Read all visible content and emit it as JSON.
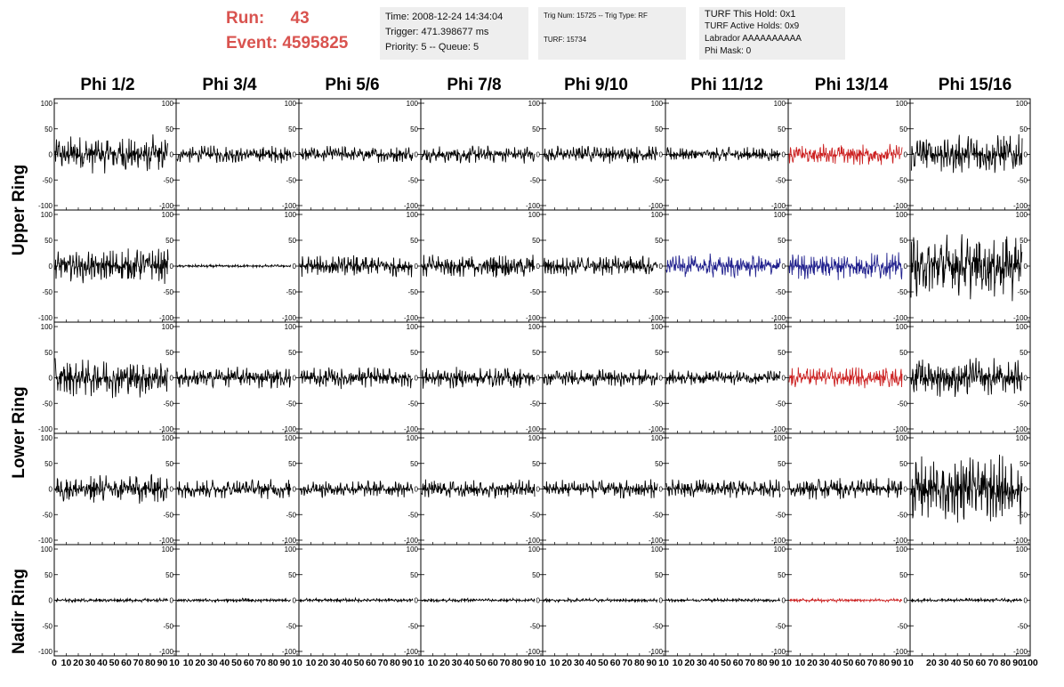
{
  "header": {
    "run_label": "Run:",
    "run_value": "43",
    "event_label": "Event:",
    "event_value": "4595825",
    "box1": [
      "Time: 2008-12-24 14:34:04",
      "Trigger: 471.398677 ms",
      "Priority: 5 -- Queue: 5"
    ],
    "box2": [
      "Trig Num: 15725 -- Trig Type: RF",
      "TURF: 15734"
    ],
    "box3": [
      "TURF This Hold: 0x1",
      "TURF Active Holds: 0x9",
      "Labrador AAAAAAAAAA",
      "Phi Mask: 0"
    ]
  },
  "columns": [
    "Phi 1/2",
    "Phi 3/4",
    "Phi 5/6",
    "Phi 7/8",
    "Phi 9/10",
    "Phi 11/12",
    "Phi 13/14",
    "Phi 15/16"
  ],
  "rings": [
    "Upper Ring",
    "Lower Ring",
    "Nadir Ring"
  ],
  "colors": {
    "trace": "#000000",
    "red": "#cc2222",
    "blue": "#22228e",
    "accent": "#d9534f"
  },
  "chart_data": {
    "type": "line",
    "ylim": [
      -100,
      100
    ],
    "xlim": [
      0,
      100
    ],
    "y_ticks_inner": [
      "100",
      "50",
      "0",
      "-50",
      "-100"
    ],
    "x_tick_labels": [
      "0",
      "10",
      "20",
      "30",
      "40",
      "50",
      "60",
      "70",
      "80",
      "90",
      "10"
    ],
    "x_tick_labels_last": [
      "10",
      "20",
      "30",
      "40",
      "50",
      "60",
      "70",
      "80",
      "90",
      "100"
    ],
    "panel_rows": 5,
    "panel_cols": 8,
    "amplitudes": [
      [
        40,
        18,
        18,
        18,
        18,
        15,
        22,
        40
      ],
      [
        35,
        3,
        22,
        25,
        22,
        25,
        28,
        70
      ],
      [
        40,
        22,
        22,
        22,
        18,
        15,
        22,
        40
      ],
      [
        30,
        20,
        18,
        20,
        20,
        20,
        22,
        70
      ],
      [
        4,
        4,
        4,
        4,
        4,
        4,
        4,
        4
      ]
    ],
    "trace_colors": [
      [
        "trace",
        "trace",
        "trace",
        "trace",
        "trace",
        "trace",
        "red",
        "trace"
      ],
      [
        "trace",
        "trace",
        "trace",
        "trace",
        "trace",
        "blue",
        "blue",
        "trace"
      ],
      [
        "trace",
        "trace",
        "trace",
        "trace",
        "trace",
        "trace",
        "red",
        "trace"
      ],
      [
        "trace",
        "trace",
        "trace",
        "trace",
        "trace",
        "trace",
        "trace",
        "trace"
      ],
      [
        "trace",
        "trace",
        "trace",
        "trace",
        "trace",
        "trace",
        "red",
        "trace"
      ]
    ]
  }
}
